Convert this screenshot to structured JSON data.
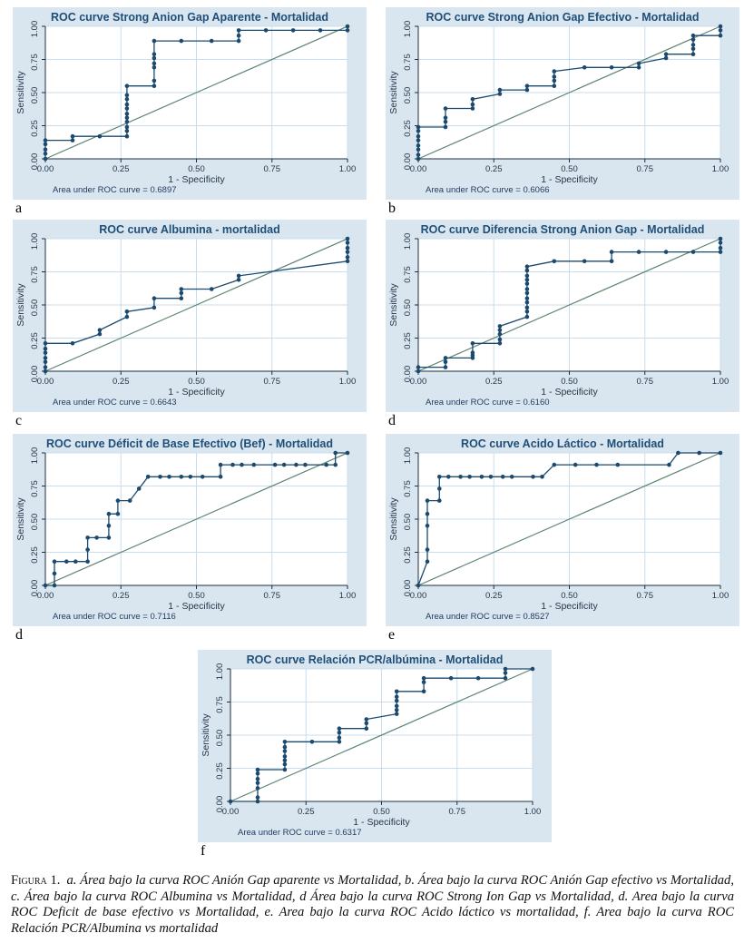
{
  "figure": {
    "caption_label": "Figura 1.",
    "caption_text": "a. Área bajo la curva ROC Anión Gap aparente vs Mortalidad, b. Área bajo la curva ROC Anión Gap efectivo vs Mortalidad, c. Área bajo la curva ROC Albumina vs Mortalidad, d Área bajo la curva ROC Strong Ion Gap vs Mortalidad, d. Area bajo la curva ROC Deficit de base efectivo vs Mortalidad, e. Area bajo la curva ROC Acido láctico vs mortalidad, f. Area bajo la curva ROC Relación PCR/Albumina vs mortalidad"
  },
  "colors": {
    "tile_background": "#d9e6ef",
    "plot_background": "#ffffff",
    "grid_line": "#c8ddee",
    "axis_line": "#1c2f3f",
    "title_text": "#1f4e79",
    "curve": "#1b4a6e",
    "reference_line": "#5f8575"
  },
  "axis": {
    "x_label": "1 - Specificity",
    "y_label": "Sensitivity",
    "tick_labels": [
      "0.00",
      "0.25",
      "0.50",
      "0.75",
      "1.00"
    ],
    "tick_values": [
      0,
      0.25,
      0.5,
      0.75,
      1
    ],
    "xlim": [
      0,
      1
    ],
    "ylim": [
      0,
      1
    ],
    "grid": true
  },
  "auc_prefix": "Area under ROC curve = ",
  "chart_data": [
    {
      "type": "line",
      "panel_label": "a",
      "title": "ROC curve Strong Anion Gap Aparente - Mortalidad",
      "auc": "0.6897",
      "xlabel": "1 - Specificity",
      "ylabel": "Sensitivity",
      "xlim": [
        0,
        1
      ],
      "ylim": [
        0,
        1
      ],
      "reference_line": [
        [
          0,
          0
        ],
        [
          1,
          1
        ]
      ],
      "points": [
        [
          0,
          0
        ],
        [
          0,
          0.04
        ],
        [
          0,
          0.07
        ],
        [
          0,
          0.11
        ],
        [
          0,
          0.14
        ],
        [
          0.09,
          0.14
        ],
        [
          0.09,
          0.17
        ],
        [
          0.18,
          0.17
        ],
        [
          0.27,
          0.17
        ],
        [
          0.27,
          0.21
        ],
        [
          0.27,
          0.24
        ],
        [
          0.27,
          0.28
        ],
        [
          0.27,
          0.31
        ],
        [
          0.27,
          0.34
        ],
        [
          0.27,
          0.38
        ],
        [
          0.27,
          0.41
        ],
        [
          0.27,
          0.45
        ],
        [
          0.27,
          0.48
        ],
        [
          0.27,
          0.55
        ],
        [
          0.36,
          0.55
        ],
        [
          0.36,
          0.59
        ],
        [
          0.36,
          0.69
        ],
        [
          0.36,
          0.72
        ],
        [
          0.36,
          0.76
        ],
        [
          0.36,
          0.79
        ],
        [
          0.36,
          0.89
        ],
        [
          0.45,
          0.89
        ],
        [
          0.55,
          0.89
        ],
        [
          0.64,
          0.89
        ],
        [
          0.64,
          0.93
        ],
        [
          0.64,
          0.97
        ],
        [
          0.73,
          0.97
        ],
        [
          0.82,
          0.97
        ],
        [
          0.91,
          0.97
        ],
        [
          1,
          0.97
        ],
        [
          1,
          1
        ]
      ]
    },
    {
      "type": "line",
      "panel_label": "b",
      "title": "ROC curve Strong Anion Gap Efectivo - Mortalidad",
      "auc": "0.6066",
      "xlabel": "1 - Specificity",
      "ylabel": "Sensitivity",
      "xlim": [
        0,
        1
      ],
      "ylim": [
        0,
        1
      ],
      "reference_line": [
        [
          0,
          0
        ],
        [
          1,
          1
        ]
      ],
      "points": [
        [
          0,
          0
        ],
        [
          0,
          0.03
        ],
        [
          0,
          0.07
        ],
        [
          0,
          0.1
        ],
        [
          0,
          0.14
        ],
        [
          0,
          0.17
        ],
        [
          0,
          0.21
        ],
        [
          0,
          0.24
        ],
        [
          0.09,
          0.24
        ],
        [
          0.09,
          0.28
        ],
        [
          0.09,
          0.31
        ],
        [
          0.09,
          0.38
        ],
        [
          0.18,
          0.38
        ],
        [
          0.18,
          0.41
        ],
        [
          0.18,
          0.45
        ],
        [
          0.27,
          0.49
        ],
        [
          0.27,
          0.52
        ],
        [
          0.36,
          0.52
        ],
        [
          0.36,
          0.55
        ],
        [
          0.45,
          0.55
        ],
        [
          0.45,
          0.59
        ],
        [
          0.45,
          0.62
        ],
        [
          0.45,
          0.66
        ],
        [
          0.55,
          0.69
        ],
        [
          0.64,
          0.69
        ],
        [
          0.73,
          0.69
        ],
        [
          0.73,
          0.72
        ],
        [
          0.82,
          0.76
        ],
        [
          0.82,
          0.79
        ],
        [
          0.91,
          0.79
        ],
        [
          0.91,
          0.83
        ],
        [
          0.91,
          0.86
        ],
        [
          0.91,
          0.9
        ],
        [
          0.91,
          0.93
        ],
        [
          1,
          0.93
        ],
        [
          1,
          0.97
        ],
        [
          1,
          1
        ]
      ]
    },
    {
      "type": "line",
      "panel_label": "c",
      "title": "ROC curve Albumina - mortalidad",
      "auc": "0.6643",
      "xlabel": "1 - Specificity",
      "ylabel": "Sensitivity",
      "xlim": [
        0,
        1
      ],
      "ylim": [
        0,
        1
      ],
      "reference_line": [
        [
          0,
          0
        ],
        [
          1,
          1
        ]
      ],
      "points": [
        [
          0,
          0
        ],
        [
          0,
          0.03
        ],
        [
          0,
          0.07
        ],
        [
          0,
          0.1
        ],
        [
          0,
          0.14
        ],
        [
          0,
          0.17
        ],
        [
          0,
          0.21
        ],
        [
          0.09,
          0.21
        ],
        [
          0.18,
          0.28
        ],
        [
          0.18,
          0.31
        ],
        [
          0.27,
          0.41
        ],
        [
          0.27,
          0.45
        ],
        [
          0.36,
          0.48
        ],
        [
          0.36,
          0.55
        ],
        [
          0.45,
          0.55
        ],
        [
          0.45,
          0.59
        ],
        [
          0.45,
          0.62
        ],
        [
          0.55,
          0.62
        ],
        [
          0.64,
          0.69
        ],
        [
          0.64,
          0.72
        ],
        [
          1,
          0.83
        ],
        [
          1,
          0.86
        ],
        [
          1,
          0.9
        ],
        [
          1,
          0.93
        ],
        [
          1,
          0.97
        ],
        [
          1,
          1
        ]
      ]
    },
    {
      "type": "line",
      "panel_label": "d",
      "title": "ROC curve Diferencia Strong Anion Gap - Mortalidad",
      "auc": "0.6160",
      "xlabel": "1 - Specificity",
      "ylabel": "Sensitivity",
      "xlim": [
        0,
        1
      ],
      "ylim": [
        0,
        1
      ],
      "reference_line": [
        [
          0,
          0
        ],
        [
          1,
          1
        ]
      ],
      "points": [
        [
          0,
          0
        ],
        [
          0,
          0.03
        ],
        [
          0.09,
          0.03
        ],
        [
          0.09,
          0.07
        ],
        [
          0.09,
          0.1
        ],
        [
          0.18,
          0.1
        ],
        [
          0.18,
          0.12
        ],
        [
          0.18,
          0.14
        ],
        [
          0.18,
          0.21
        ],
        [
          0.27,
          0.21
        ],
        [
          0.27,
          0.24
        ],
        [
          0.27,
          0.28
        ],
        [
          0.27,
          0.31
        ],
        [
          0.27,
          0.34
        ],
        [
          0.36,
          0.41
        ],
        [
          0.36,
          0.45
        ],
        [
          0.36,
          0.48
        ],
        [
          0.36,
          0.52
        ],
        [
          0.36,
          0.55
        ],
        [
          0.36,
          0.59
        ],
        [
          0.36,
          0.62
        ],
        [
          0.36,
          0.66
        ],
        [
          0.36,
          0.69
        ],
        [
          0.36,
          0.72
        ],
        [
          0.36,
          0.76
        ],
        [
          0.36,
          0.79
        ],
        [
          0.45,
          0.83
        ],
        [
          0.55,
          0.83
        ],
        [
          0.64,
          0.83
        ],
        [
          0.64,
          0.9
        ],
        [
          0.73,
          0.9
        ],
        [
          0.82,
          0.9
        ],
        [
          0.91,
          0.9
        ],
        [
          1,
          0.9
        ],
        [
          1,
          0.93
        ],
        [
          1,
          0.97
        ],
        [
          1,
          1
        ]
      ]
    },
    {
      "type": "line",
      "panel_label": "d",
      "title": "ROC curve Déficit de Base Efectivo (Bef) - Mortalidad",
      "auc": "0.7116",
      "xlabel": "1 - Specificity",
      "ylabel": "Sensitivity",
      "xlim": [
        0,
        1
      ],
      "ylim": [
        0,
        1
      ],
      "reference_line": [
        [
          0,
          0
        ],
        [
          1,
          1
        ]
      ],
      "points": [
        [
          0,
          0
        ],
        [
          0.03,
          0
        ],
        [
          0.03,
          0.09
        ],
        [
          0.03,
          0.18
        ],
        [
          0.07,
          0.18
        ],
        [
          0.1,
          0.18
        ],
        [
          0.14,
          0.18
        ],
        [
          0.14,
          0.27
        ],
        [
          0.14,
          0.36
        ],
        [
          0.17,
          0.36
        ],
        [
          0.21,
          0.36
        ],
        [
          0.21,
          0.45
        ],
        [
          0.21,
          0.54
        ],
        [
          0.24,
          0.54
        ],
        [
          0.24,
          0.64
        ],
        [
          0.28,
          0.64
        ],
        [
          0.31,
          0.73
        ],
        [
          0.34,
          0.82
        ],
        [
          0.38,
          0.82
        ],
        [
          0.41,
          0.82
        ],
        [
          0.45,
          0.82
        ],
        [
          0.48,
          0.82
        ],
        [
          0.52,
          0.82
        ],
        [
          0.58,
          0.82
        ],
        [
          0.58,
          0.91
        ],
        [
          0.62,
          0.91
        ],
        [
          0.65,
          0.91
        ],
        [
          0.69,
          0.91
        ],
        [
          0.76,
          0.91
        ],
        [
          0.79,
          0.91
        ],
        [
          0.83,
          0.91
        ],
        [
          0.86,
          0.91
        ],
        [
          0.93,
          0.91
        ],
        [
          0.96,
          0.91
        ],
        [
          0.96,
          1
        ],
        [
          1,
          1
        ]
      ]
    },
    {
      "type": "line",
      "panel_label": "e",
      "title": "ROC curve Acido Láctico - Mortalidad",
      "auc": "0.8527",
      "xlabel": "1 - Specificity",
      "ylabel": "Sensitivity",
      "xlim": [
        0,
        1
      ],
      "ylim": [
        0,
        1
      ],
      "reference_line": [
        [
          0,
          0
        ],
        [
          1,
          1
        ]
      ],
      "points": [
        [
          0,
          0
        ],
        [
          0.03,
          0.18
        ],
        [
          0.03,
          0.27
        ],
        [
          0.03,
          0.45
        ],
        [
          0.03,
          0.54
        ],
        [
          0.03,
          0.64
        ],
        [
          0.07,
          0.64
        ],
        [
          0.07,
          0.73
        ],
        [
          0.07,
          0.82
        ],
        [
          0.1,
          0.82
        ],
        [
          0.14,
          0.82
        ],
        [
          0.17,
          0.82
        ],
        [
          0.21,
          0.82
        ],
        [
          0.24,
          0.82
        ],
        [
          0.28,
          0.82
        ],
        [
          0.31,
          0.82
        ],
        [
          0.38,
          0.82
        ],
        [
          0.41,
          0.82
        ],
        [
          0.45,
          0.91
        ],
        [
          0.52,
          0.91
        ],
        [
          0.59,
          0.91
        ],
        [
          0.66,
          0.91
        ],
        [
          0.83,
          0.91
        ],
        [
          0.86,
          1
        ],
        [
          0.93,
          1
        ],
        [
          1,
          1
        ]
      ]
    },
    {
      "type": "line",
      "panel_label": "f",
      "title": "ROC curve Relación PCR/albúmina - Mortalidad",
      "auc": "0.6317",
      "xlabel": "1 - Specificity",
      "ylabel": "Sensitivity",
      "xlim": [
        0,
        1
      ],
      "ylim": [
        0,
        1
      ],
      "reference_line": [
        [
          0,
          0
        ],
        [
          1,
          1
        ]
      ],
      "points": [
        [
          0,
          0
        ],
        [
          0.09,
          0
        ],
        [
          0.09,
          0.03
        ],
        [
          0.09,
          0.1
        ],
        [
          0.09,
          0.14
        ],
        [
          0.09,
          0.17
        ],
        [
          0.09,
          0.21
        ],
        [
          0.09,
          0.24
        ],
        [
          0.18,
          0.24
        ],
        [
          0.18,
          0.28
        ],
        [
          0.18,
          0.31
        ],
        [
          0.18,
          0.34
        ],
        [
          0.18,
          0.38
        ],
        [
          0.18,
          0.41
        ],
        [
          0.18,
          0.45
        ],
        [
          0.27,
          0.45
        ],
        [
          0.36,
          0.45
        ],
        [
          0.36,
          0.48
        ],
        [
          0.36,
          0.52
        ],
        [
          0.36,
          0.55
        ],
        [
          0.45,
          0.55
        ],
        [
          0.45,
          0.59
        ],
        [
          0.45,
          0.62
        ],
        [
          0.55,
          0.66
        ],
        [
          0.55,
          0.69
        ],
        [
          0.55,
          0.72
        ],
        [
          0.55,
          0.76
        ],
        [
          0.55,
          0.79
        ],
        [
          0.55,
          0.83
        ],
        [
          0.64,
          0.83
        ],
        [
          0.64,
          0.9
        ],
        [
          0.64,
          0.93
        ],
        [
          0.73,
          0.93
        ],
        [
          0.82,
          0.93
        ],
        [
          0.91,
          0.93
        ],
        [
          0.91,
          0.97
        ],
        [
          0.91,
          1
        ],
        [
          1,
          1
        ]
      ]
    }
  ]
}
